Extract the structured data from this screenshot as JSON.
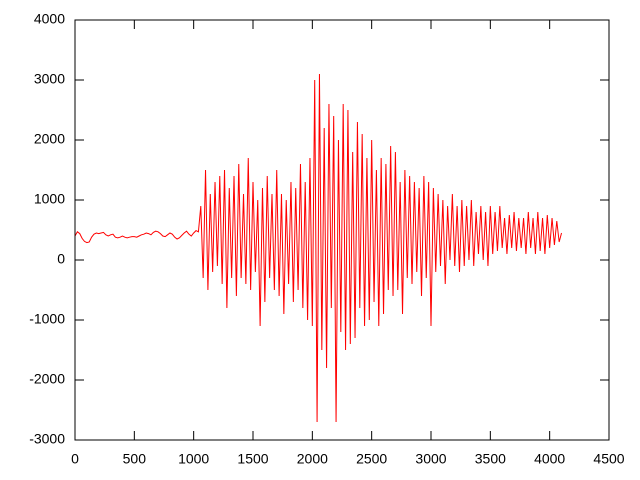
{
  "chart_data": {
    "type": "line",
    "x": [
      0,
      20,
      40,
      60,
      80,
      100,
      120,
      140,
      160,
      180,
      200,
      220,
      240,
      260,
      280,
      300,
      320,
      340,
      360,
      380,
      400,
      420,
      440,
      460,
      480,
      500,
      520,
      540,
      560,
      580,
      600,
      620,
      640,
      660,
      680,
      700,
      720,
      740,
      760,
      780,
      800,
      820,
      840,
      860,
      880,
      900,
      920,
      940,
      960,
      980,
      1000,
      1020,
      1040,
      1060,
      1080,
      1100,
      1120,
      1140,
      1160,
      1180,
      1200,
      1220,
      1240,
      1260,
      1280,
      1300,
      1320,
      1340,
      1360,
      1380,
      1400,
      1420,
      1440,
      1460,
      1480,
      1500,
      1520,
      1540,
      1560,
      1580,
      1600,
      1620,
      1640,
      1660,
      1680,
      1700,
      1720,
      1740,
      1760,
      1780,
      1800,
      1820,
      1840,
      1860,
      1880,
      1900,
      1920,
      1940,
      1960,
      1980,
      2000,
      2020,
      2040,
      2060,
      2080,
      2100,
      2120,
      2140,
      2160,
      2180,
      2200,
      2220,
      2240,
      2260,
      2280,
      2300,
      2320,
      2340,
      2360,
      2380,
      2400,
      2420,
      2440,
      2460,
      2480,
      2500,
      2520,
      2540,
      2560,
      2580,
      2600,
      2620,
      2640,
      2660,
      2680,
      2700,
      2720,
      2740,
      2760,
      2780,
      2800,
      2820,
      2840,
      2860,
      2880,
      2900,
      2920,
      2940,
      2960,
      2980,
      3000,
      3020,
      3040,
      3060,
      3080,
      3100,
      3120,
      3140,
      3160,
      3180,
      3200,
      3220,
      3240,
      3260,
      3280,
      3300,
      3320,
      3340,
      3360,
      3380,
      3400,
      3420,
      3440,
      3460,
      3480,
      3500,
      3520,
      3540,
      3560,
      3580,
      3600,
      3620,
      3640,
      3660,
      3680,
      3700,
      3720,
      3740,
      3760,
      3780,
      3800,
      3820,
      3840,
      3860,
      3880,
      3900,
      3920,
      3940,
      3960,
      3980,
      4000,
      4020,
      4040,
      4060,
      4080,
      4100
    ],
    "series": [
      {
        "color": "#ff0000",
        "values": [
          400,
          470,
          440,
          360,
          310,
          290,
          300,
          380,
          430,
          450,
          440,
          450,
          460,
          420,
          400,
          420,
          430,
          380,
          370,
          380,
          400,
          380,
          370,
          380,
          390,
          390,
          380,
          400,
          420,
          430,
          450,
          440,
          420,
          460,
          480,
          470,
          440,
          400,
          390,
          420,
          450,
          430,
          380,
          350,
          370,
          410,
          450,
          480,
          430,
          400,
          450,
          490,
          470,
          900,
          -300,
          1500,
          -500,
          1100,
          -200,
          1300,
          -100,
          1400,
          -400,
          1500,
          -800,
          1200,
          -300,
          1400,
          -600,
          1600,
          -300,
          1100,
          -400,
          1700,
          -500,
          1300,
          -200,
          1000,
          -1100,
          1200,
          -700,
          1400,
          -300,
          1100,
          -500,
          1500,
          -600,
          1100,
          -900,
          1000,
          -400,
          1300,
          -700,
          1200,
          -500,
          1600,
          -800,
          1300,
          -1000,
          1700,
          -1100,
          3000,
          -2700,
          3100,
          -1500,
          2200,
          -1800,
          2600,
          -800,
          2400,
          -2700,
          2000,
          -1200,
          2600,
          -1500,
          2500,
          -1400,
          1800,
          -1300,
          2300,
          -800,
          2100,
          -1100,
          1700,
          -1000,
          2000,
          -700,
          1500,
          -1100,
          1700,
          -900,
          1600,
          -500,
          1900,
          -600,
          1800,
          -500,
          1300,
          -900,
          1500,
          -300,
          1400,
          -400,
          1300,
          -200,
          1200,
          -600,
          1400,
          -300,
          1300,
          -1100,
          1200,
          -200,
          1100,
          -100,
          1000,
          -400,
          900,
          0,
          1100,
          -100,
          900,
          -200,
          1000,
          -100,
          900,
          0,
          1000,
          -100,
          800,
          100,
          900,
          0,
          800,
          -100,
          900,
          100,
          800,
          150,
          900,
          200,
          700,
          100,
          750,
          200,
          800,
          150,
          700,
          200,
          700,
          100,
          800,
          200,
          700,
          100,
          800,
          150,
          700,
          100,
          750,
          200,
          700,
          250,
          650,
          300,
          450
        ]
      }
    ],
    "xlim": [
      0,
      4500
    ],
    "ylim": [
      -3000,
      4000
    ],
    "xticks": [
      0,
      500,
      1000,
      1500,
      2000,
      2500,
      3000,
      3500,
      4000,
      4500
    ],
    "yticks": [
      -3000,
      -2000,
      -1000,
      0,
      1000,
      2000,
      3000,
      4000
    ]
  }
}
